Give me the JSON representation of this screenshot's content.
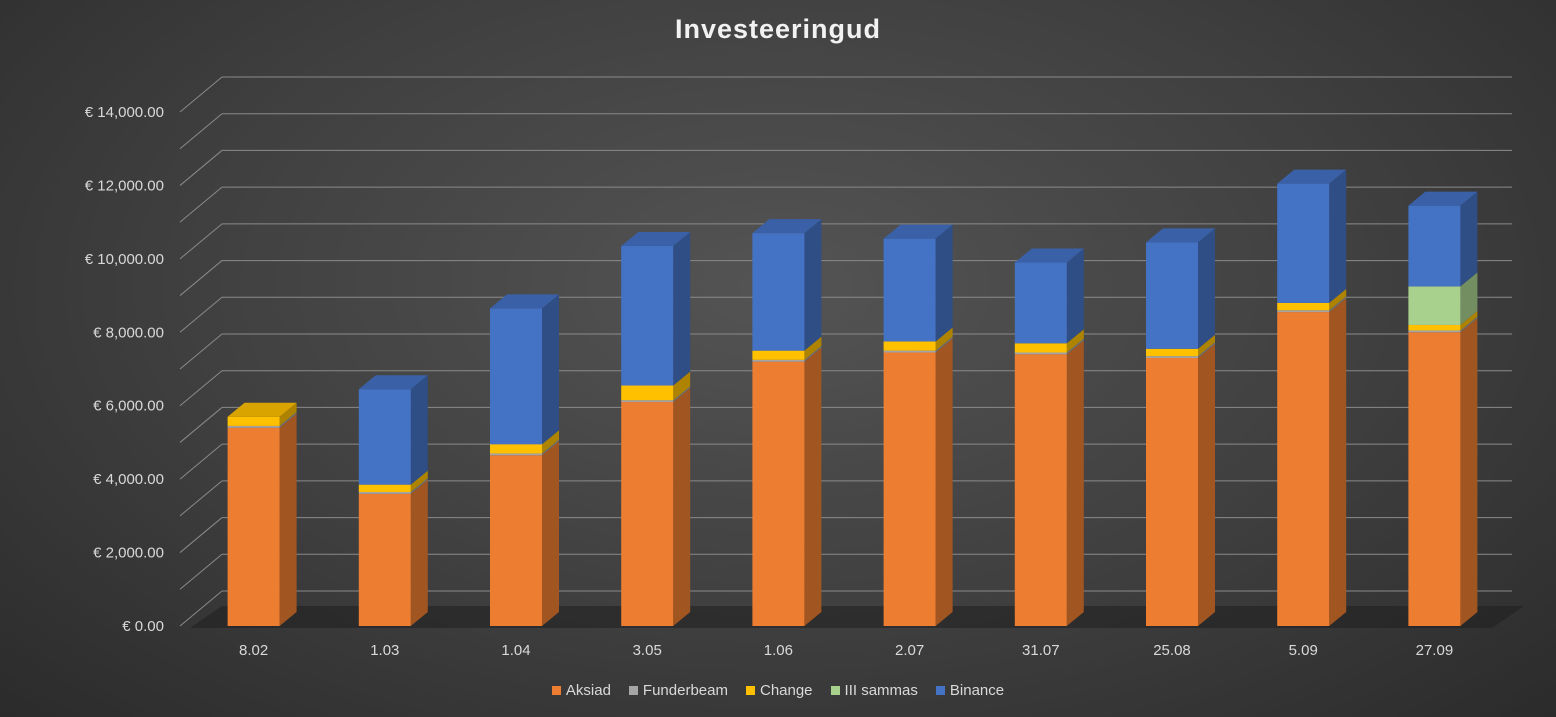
{
  "chart_data": {
    "type": "bar",
    "stacked": true,
    "three_d": true,
    "title": "Investeeringud",
    "categories": [
      "8.02",
      "1.03",
      "1.04",
      "3.05",
      "1.06",
      "2.07",
      "31.07",
      "25.08",
      "5.09",
      "27.09"
    ],
    "series": [
      {
        "name": "Aksiad",
        "color": "#ED7D31",
        "values": [
          5400,
          3600,
          4650,
          6100,
          7200,
          7450,
          7400,
          7300,
          8550,
          8000
        ]
      },
      {
        "name": "Funderbeam",
        "color": "#A5A5A5",
        "values": [
          50,
          50,
          50,
          50,
          50,
          50,
          50,
          50,
          50,
          50
        ]
      },
      {
        "name": "Change",
        "color": "#FFC000",
        "values": [
          250,
          200,
          250,
          400,
          250,
          250,
          250,
          200,
          200,
          150
        ]
      },
      {
        "name": "III sammas",
        "color": "#A9D18E",
        "values": [
          0,
          0,
          0,
          0,
          0,
          0,
          0,
          0,
          0,
          1050
        ]
      },
      {
        "name": "Binance",
        "color": "#4472C4",
        "values": [
          0,
          2600,
          3700,
          3800,
          3200,
          2800,
          2200,
          2900,
          3250,
          2200
        ]
      }
    ],
    "y_ticks": [
      "€ 0.00",
      "€ 2,000.00",
      "€ 4,000.00",
      "€ 6,000.00",
      "€ 8,000.00",
      "€ 10,000.00",
      "€ 12,000.00",
      "€ 14,000.00"
    ],
    "ylim": [
      0,
      14000
    ],
    "y_tick_step": 2000,
    "y_minor_step": 1000,
    "grid": true,
    "legend_position": "bottom"
  }
}
